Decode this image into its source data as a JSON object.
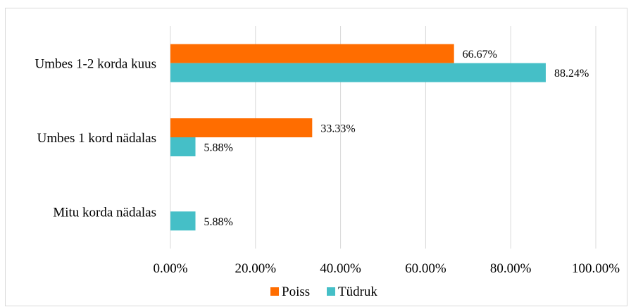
{
  "chart_data": {
    "type": "bar",
    "orientation": "horizontal",
    "categories": [
      "Umbes 1-2 korda kuus",
      "Umbes 1 kord nädalas",
      "Mitu korda nädalas"
    ],
    "series": [
      {
        "name": "Poiss",
        "color": "#FF6D00",
        "values": [
          66.67,
          33.33,
          null
        ],
        "labels": [
          "66.67%",
          "33.33%",
          ""
        ]
      },
      {
        "name": "Tüdruk",
        "color": "#45BFC7",
        "values": [
          88.24,
          5.88,
          5.88
        ],
        "labels": [
          "88.24%",
          "5.88%",
          "5.88%"
        ]
      }
    ],
    "xlim": [
      0,
      100
    ],
    "x_ticks": [
      0,
      20,
      40,
      60,
      80,
      100
    ],
    "x_tick_labels": [
      "0.00%",
      "20.00%",
      "40.00%",
      "60.00%",
      "80.00%",
      "100.00%"
    ],
    "grid": "vertical",
    "legend": "bottom"
  }
}
